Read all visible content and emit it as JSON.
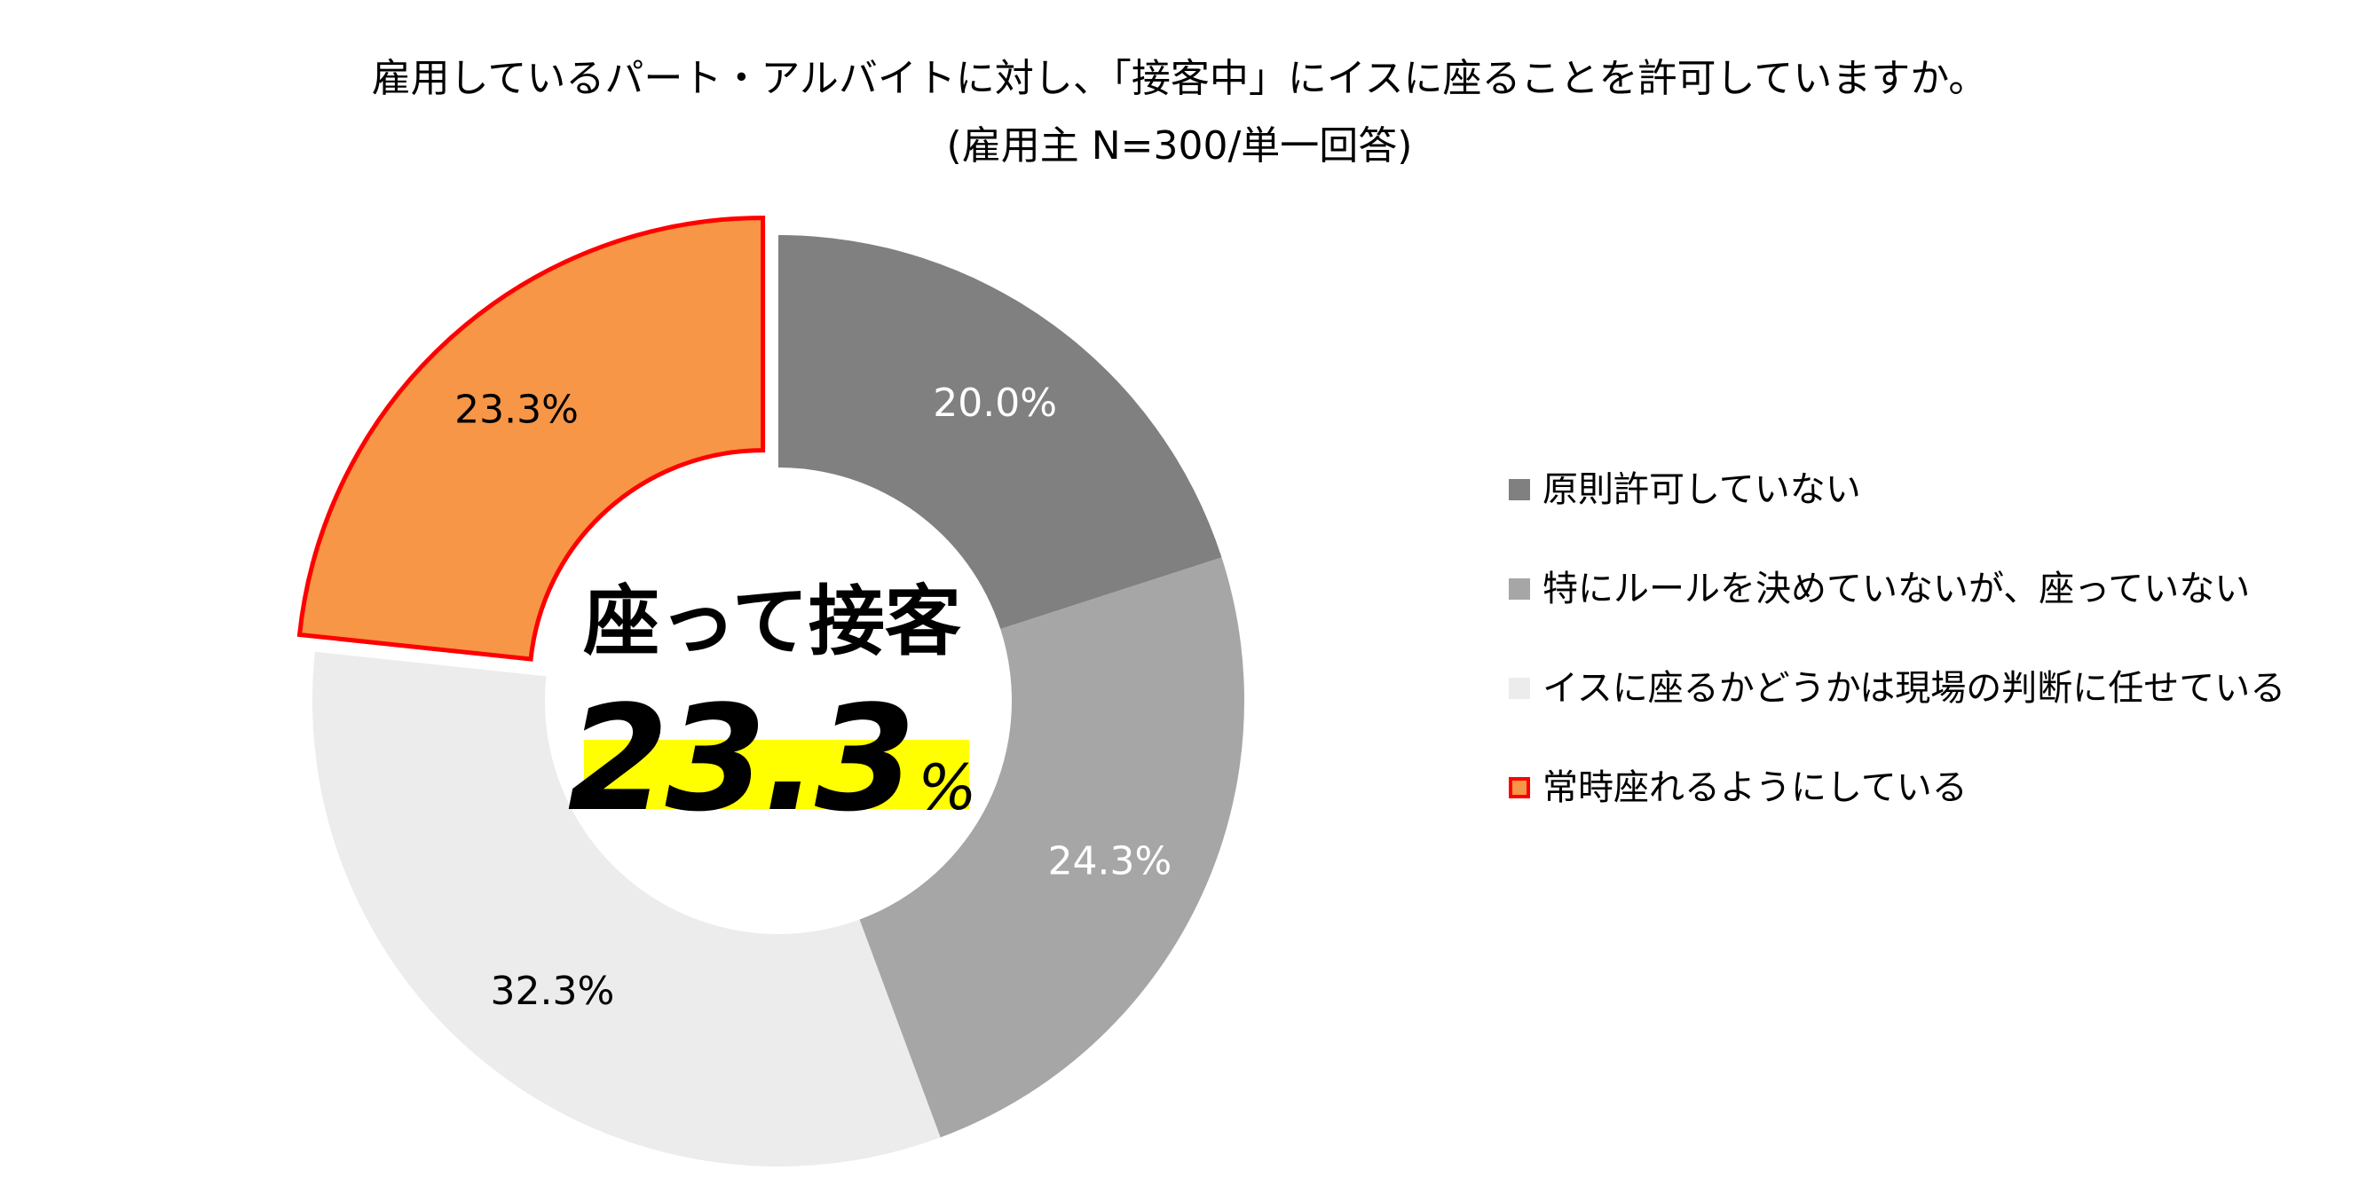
{
  "title": "雇用しているパート・アルバイトに対し、「接客中」にイスに座ることを許可していますか。",
  "subtitle": "(雇用主 N=300/単一回答)",
  "center": {
    "title": "座って接客",
    "value": "23.3",
    "unit": "%"
  },
  "chart_data": {
    "type": "pie",
    "style": "donut",
    "start_angle_deg": 0,
    "direction": "clockwise",
    "title": "雇用しているパート・アルバイトに対し、「接客中」にイスに座ることを許可していますか。",
    "subtitle": "(雇用主 N=300/単一回答)",
    "legend_position": "right",
    "slices": [
      {
        "label": "原則許可していない",
        "value": 20.0,
        "display": "20.0%",
        "color": "#808080",
        "label_color": "#ffffff",
        "outline": null,
        "exploded": false
      },
      {
        "label": "特にルールを決めていないが、座っていない",
        "value": 24.3,
        "display": "24.3%",
        "color": "#a6a6a6",
        "label_color": "#ffffff",
        "outline": null,
        "exploded": false
      },
      {
        "label": "イスに座るかどうかは現場の判断に任せている",
        "value": 32.3,
        "display": "32.3%",
        "color": "#ececec",
        "label_color": "#000000",
        "outline": null,
        "exploded": false
      },
      {
        "label": "常時座れるようにしている",
        "value": 23.3,
        "display": "23.3%",
        "color": "#f79646",
        "label_color": "#000000",
        "outline": "#ff0000",
        "exploded": true
      }
    ]
  }
}
